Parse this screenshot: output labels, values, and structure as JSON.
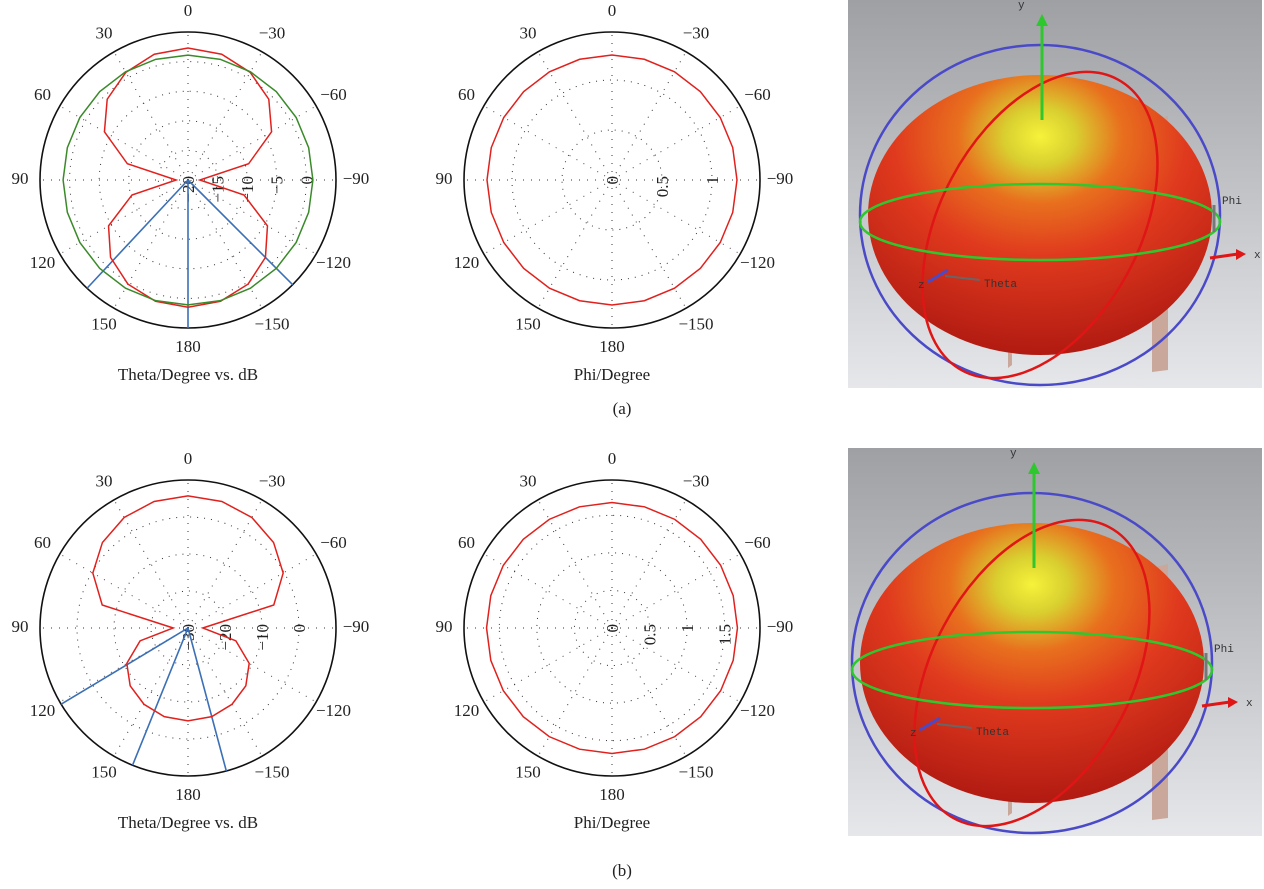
{
  "chart_data": [
    {
      "type": "polar",
      "xlabel": "Theta/Degree vs. dB",
      "x": [
        0,
        15,
        30,
        45,
        60,
        75,
        90,
        105,
        120,
        135,
        150,
        165,
        180,
        195,
        210,
        225,
        240,
        255,
        270,
        285,
        300,
        315,
        330,
        345
      ],
      "xticks": [
        0,
        30,
        60,
        90,
        120,
        150,
        180,
        {
          "value": -150,
          "label": "−150"
        },
        {
          "value": -120,
          "label": "−120"
        },
        {
          "value": -90,
          "label": "−90"
        },
        {
          "value": -60,
          "label": "−60"
        },
        {
          "value": -30,
          "label": "−30"
        }
      ],
      "rlim": [
        -20,
        5
      ],
      "rticks": [
        {
          "value": -20,
          "label": "−20"
        },
        {
          "value": -15,
          "label": "−15"
        },
        {
          "value": -10,
          "label": "−10"
        },
        {
          "value": -5,
          "label": "−5"
        },
        0
      ],
      "grid": true,
      "series": [
        {
          "color": "#e0211d",
          "values": [
            2.3,
            2.0,
            1.0,
            -0.7,
            -3.7,
            -9.4,
            -18,
            -10.2,
            -4.5,
            -1.5,
            0.3,
            1.2,
            1.5,
            1.2,
            0.3,
            -1.5,
            -4.5,
            -10.2,
            -18,
            -9.4,
            -3.7,
            -0.7,
            1.0,
            2.0
          ]
        },
        {
          "color": "#3a8a2a",
          "values": [
            1.1,
            1.1,
            1.1,
            1.1,
            1.1,
            1.1,
            1.1,
            1.1,
            1.1,
            1.1,
            1.1,
            1.1,
            1.1,
            1.1,
            1.1,
            1.1,
            1.1,
            1.1,
            1.1,
            1.1,
            1.1,
            1.1,
            1.1,
            1.1
          ]
        }
      ],
      "beam_lines": {
        "color": "#3b6fb6",
        "angles": [
          137,
          180,
          -135
        ]
      }
    },
    {
      "type": "polar",
      "xlabel": "Phi/Degree",
      "x": [
        0,
        15,
        30,
        45,
        60,
        75,
        90,
        105,
        120,
        135,
        150,
        165,
        180,
        195,
        210,
        225,
        240,
        255,
        270,
        285,
        300,
        315,
        330,
        345
      ],
      "xticks": [
        0,
        30,
        60,
        90,
        120,
        150,
        180,
        {
          "value": -150,
          "label": "−150"
        },
        {
          "value": -120,
          "label": "−120"
        },
        {
          "value": -90,
          "label": "−90"
        },
        {
          "value": -60,
          "label": "−60"
        },
        {
          "value": -30,
          "label": "−30"
        }
      ],
      "rlim": [
        0,
        1.48
      ],
      "rticks": [
        0,
        0.5,
        1
      ],
      "grid": true,
      "series": [
        {
          "color": "#e0211d",
          "values": [
            1.25,
            1.25,
            1.25,
            1.25,
            1.25,
            1.25,
            1.25,
            1.25,
            1.25,
            1.25,
            1.25,
            1.25,
            1.25,
            1.25,
            1.25,
            1.25,
            1.25,
            1.25,
            1.25,
            1.25,
            1.25,
            1.25,
            1.25,
            1.25
          ]
        }
      ]
    },
    {
      "type": "polar",
      "xlabel": "Theta/Degree vs. dB",
      "x": [
        0,
        15,
        30,
        45,
        60,
        75,
        90,
        105,
        120,
        135,
        150,
        165,
        180,
        195,
        210,
        225,
        240,
        255,
        270,
        285,
        300,
        315,
        330,
        345
      ],
      "xticks": [
        0,
        30,
        60,
        90,
        120,
        150,
        180,
        {
          "value": -150,
          "label": "−150"
        },
        {
          "value": -120,
          "label": "−120"
        },
        {
          "value": -90,
          "label": "−90"
        },
        {
          "value": -60,
          "label": "−60"
        },
        {
          "value": -30,
          "label": "−30"
        }
      ],
      "rlim": [
        -30,
        10
      ],
      "rticks": [
        {
          "value": -30,
          "label": "−30"
        },
        {
          "value": -20,
          "label": "−20"
        },
        {
          "value": -10,
          "label": "−10"
        },
        0
      ],
      "grid": true,
      "series": [
        {
          "color": "#e0211d",
          "values": [
            5.7,
            5.4,
            4.5,
            2.7,
            -0.3,
            -6,
            -26,
            -16.6,
            -10.9,
            -7.9,
            -6.2,
            -5.2,
            -4.9,
            -5.2,
            -6.2,
            -7.9,
            -10.9,
            -16.6,
            -26,
            -6,
            -0.3,
            2.7,
            4.5,
            5.4
          ]
        }
      ],
      "beam_lines": {
        "color": "#3b6fb6",
        "angles": [
          121,
          158,
          -165
        ]
      }
    },
    {
      "type": "polar",
      "xlabel": "Phi/Degree",
      "x": [
        0,
        15,
        30,
        45,
        60,
        75,
        90,
        105,
        120,
        135,
        150,
        165,
        180,
        195,
        210,
        225,
        240,
        255,
        270,
        285,
        300,
        315,
        330,
        345
      ],
      "xticks": [
        0,
        30,
        60,
        90,
        120,
        150,
        180,
        {
          "value": -150,
          "label": "−150"
        },
        {
          "value": -120,
          "label": "−120"
        },
        {
          "value": -90,
          "label": "−90"
        },
        {
          "value": -60,
          "label": "−60"
        },
        {
          "value": -30,
          "label": "−30"
        }
      ],
      "rlim": [
        0,
        1.97
      ],
      "rticks": [
        0,
        0.5,
        1,
        1.5
      ],
      "grid": true,
      "series": [
        {
          "color": "#e0211d",
          "values": [
            1.67,
            1.67,
            1.67,
            1.67,
            1.67,
            1.67,
            1.67,
            1.67,
            1.67,
            1.67,
            1.67,
            1.67,
            1.67,
            1.67,
            1.67,
            1.67,
            1.67,
            1.67,
            1.67,
            1.67,
            1.67,
            1.67,
            1.67,
            1.67
          ]
        }
      ]
    }
  ],
  "renders": [
    {
      "labels": {
        "y": "y",
        "x": "x",
        "z": "z",
        "phi": "Phi",
        "theta": "Theta"
      }
    },
    {
      "labels": {
        "y": "y",
        "x": "x",
        "z": "z",
        "phi": "Phi",
        "theta": "Theta"
      }
    }
  ],
  "captions": [
    "(a)",
    "(b)"
  ]
}
